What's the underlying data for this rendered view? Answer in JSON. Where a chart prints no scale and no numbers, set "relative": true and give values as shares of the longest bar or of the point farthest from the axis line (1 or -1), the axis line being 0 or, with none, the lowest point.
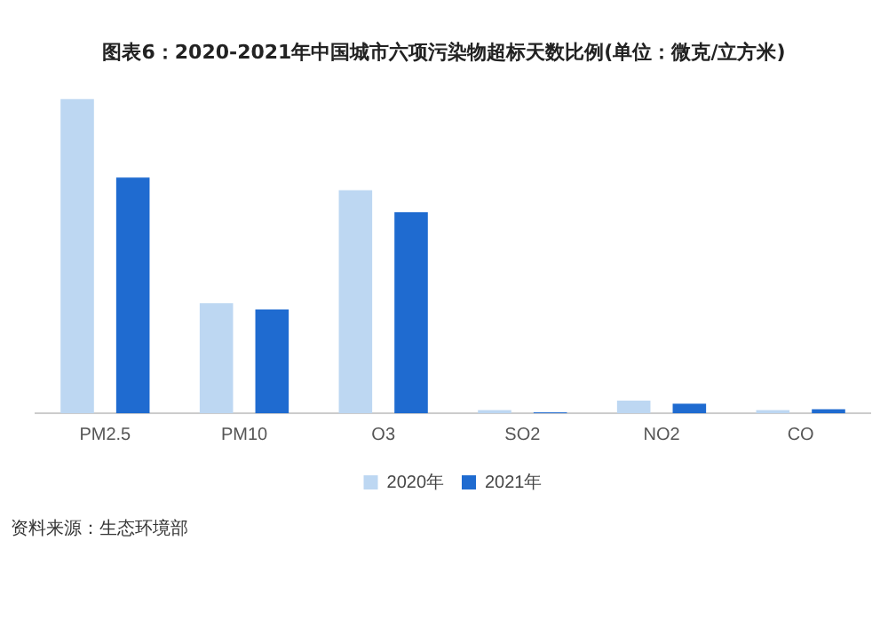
{
  "chart_data": {
    "type": "bar",
    "title": "图表6：2020-2021年中国城市六项污染物超标天数比例(单位：微克/立方米)",
    "categories": [
      "PM2.5",
      "PM10",
      "O3",
      "SO2",
      "NO2",
      "CO"
    ],
    "relative": true,
    "legend": "bottom",
    "grid": false,
    "series": [
      {
        "name": "2020年",
        "color": "#bdd7f2",
        "values": [
          1,
          0.35,
          0.71,
          0.01,
          0.04,
          0.01
        ]
      },
      {
        "name": "2021年",
        "color": "#1f6bd0",
        "values": [
          0.75,
          0.33,
          0.64,
          0.003,
          0.03,
          0.013
        ]
      }
    ],
    "annotations": [
      "资料来源：生态环境部"
    ]
  }
}
